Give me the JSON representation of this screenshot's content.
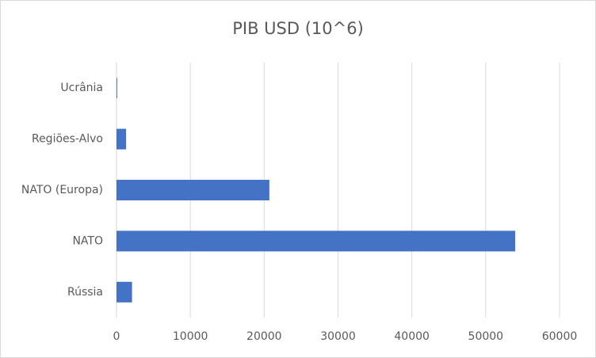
{
  "chart_data": {
    "type": "bar",
    "orientation": "horizontal",
    "title": "PIB USD (10^6)",
    "categories": [
      "Rússia",
      "NATO",
      "NATO (Europa)",
      "Regiões-Alvo",
      "Ucrânia"
    ],
    "values": [
      2100,
      54000,
      20700,
      1300,
      100
    ],
    "color": "#4472c4",
    "xlim": [
      0,
      60000
    ],
    "xticks": [
      0,
      10000,
      20000,
      30000,
      40000,
      50000,
      60000
    ],
    "grid": true
  }
}
